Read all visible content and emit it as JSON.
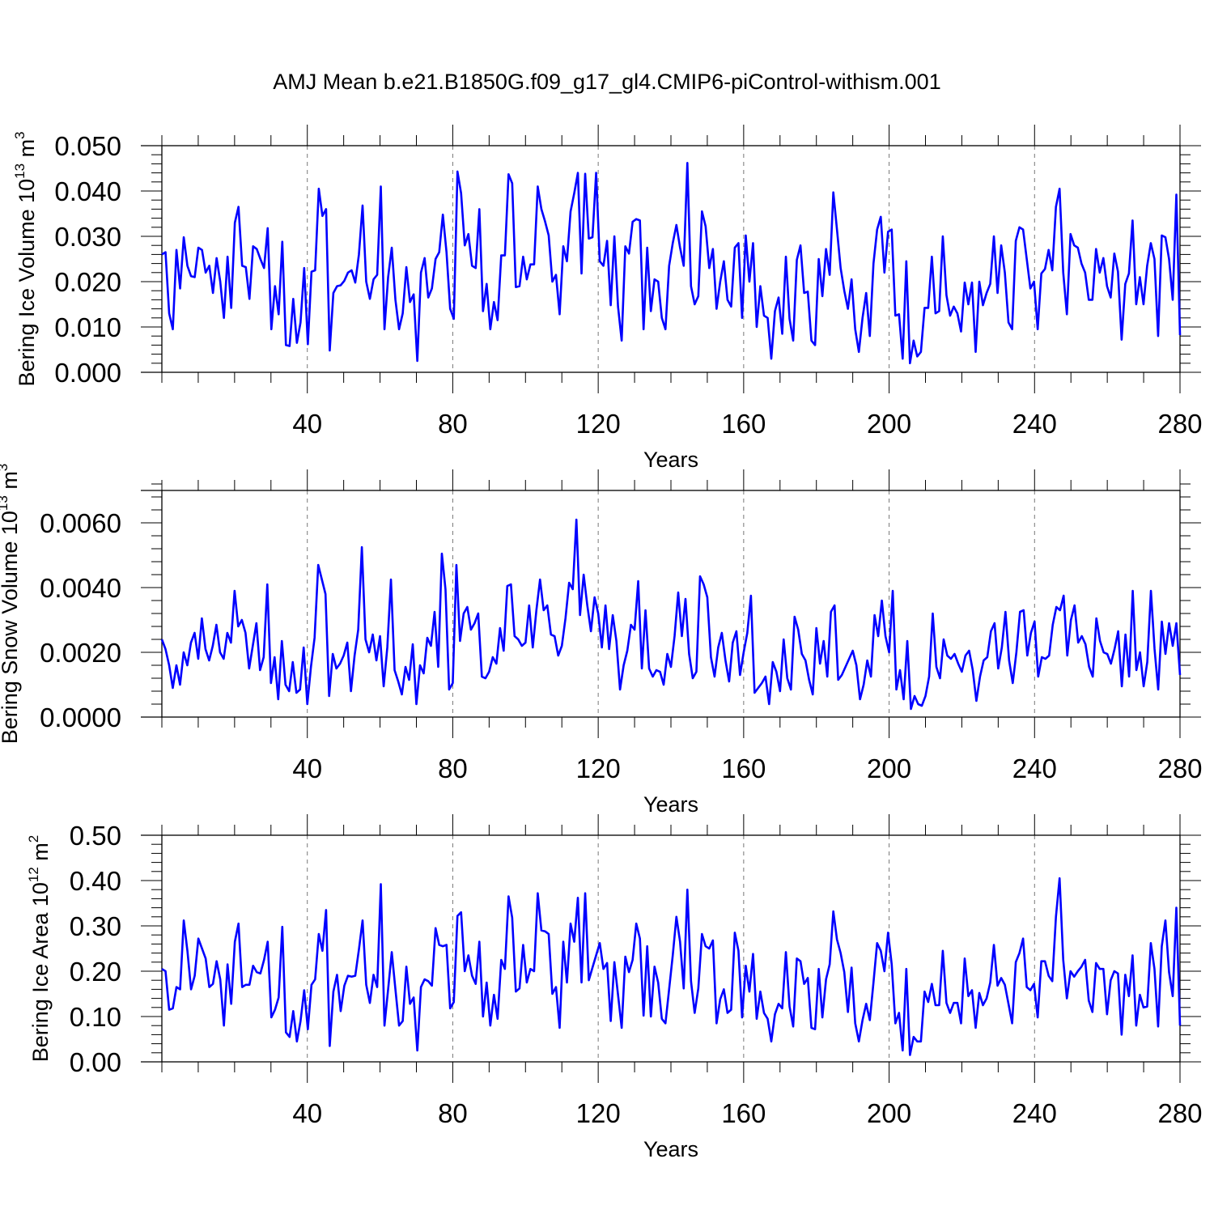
{
  "page_title": "AMJ Mean b.e21.B1850G.f09_g17_gl4.CMIP6-piControl-withism.001",
  "colors": {
    "series": "#0000ff",
    "axis": "#000000",
    "grid": "#777777",
    "background": "#ffffff"
  },
  "chart_data": [
    {
      "type": "line",
      "title": "AMJ Mean b.e21.B1850G.f09_g17_gl4.CMIP6-piControl-withism.001",
      "ylabel_main": "Bering Ice Volume 10",
      "ylabel_sup": "13",
      "ylabel_tail": " m",
      "ylabel_sup2": "3",
      "xlabel": "Years",
      "xlim": [
        0,
        280
      ],
      "ylim": [
        0,
        0.05
      ],
      "xticks": [
        40,
        80,
        120,
        160,
        200,
        240,
        280
      ],
      "xtick_labels": [
        "40",
        "80",
        "120",
        "160",
        "200",
        "240",
        "280"
      ],
      "yticks": [
        0,
        0.01,
        0.02,
        0.03,
        0.04,
        0.05
      ],
      "ytick_labels": [
        "0.000",
        "0.010",
        "0.020",
        "0.030",
        "0.040",
        "0.050"
      ],
      "grid": "vertical dashed at major x ticks",
      "series": [
        {
          "name": "Bering Ice Volume",
          "x_start": 0,
          "values": [
            0.026,
            0.0265,
            0.013,
            0.0095,
            0.027,
            0.0185,
            0.0298,
            0.0235,
            0.0212,
            0.021,
            0.0275,
            0.027,
            0.022,
            0.0235,
            0.0175,
            0.0252,
            0.02,
            0.012,
            0.0255,
            0.0142,
            0.033,
            0.0365,
            0.0235,
            0.0232,
            0.0162,
            0.0278,
            0.0272,
            0.025,
            0.023,
            0.0318,
            0.0095,
            0.019,
            0.0128,
            0.0288,
            0.006,
            0.0058,
            0.0162,
            0.0065,
            0.011,
            0.023,
            0.0062,
            0.0222,
            0.0225,
            0.0405,
            0.0345,
            0.036,
            0.0048,
            0.0175,
            0.019,
            0.0192,
            0.0202,
            0.022,
            0.0225,
            0.0198,
            0.026,
            0.0368,
            0.02,
            0.0162,
            0.0205,
            0.0215,
            0.041,
            0.0095,
            0.021,
            0.0275,
            0.016,
            0.0095,
            0.013,
            0.0232,
            0.0155,
            0.0172,
            0.0025,
            0.022,
            0.0252,
            0.0165,
            0.0185,
            0.025,
            0.0265,
            0.0348,
            0.0265,
            0.014,
            0.0118,
            0.0443,
            0.0395,
            0.028,
            0.0305,
            0.0235,
            0.023,
            0.036,
            0.0135,
            0.0195,
            0.0095,
            0.0155,
            0.0115,
            0.0258,
            0.0258,
            0.0437,
            0.0417,
            0.0188,
            0.019,
            0.0255,
            0.0205,
            0.0238,
            0.0238,
            0.041,
            0.036,
            0.0333,
            0.0302,
            0.02,
            0.0215,
            0.0128,
            0.0278,
            0.0245,
            0.0355,
            0.0395,
            0.044,
            0.0218,
            0.0438,
            0.0295,
            0.0298,
            0.044,
            0.0245,
            0.0235,
            0.029,
            0.0148,
            0.03,
            0.0145,
            0.007,
            0.0278,
            0.0262,
            0.0332,
            0.0338,
            0.0335,
            0.0095,
            0.0275,
            0.0135,
            0.0205,
            0.02,
            0.012,
            0.0095,
            0.0235,
            0.0285,
            0.0325,
            0.0275,
            0.0235,
            0.0462,
            0.019,
            0.015,
            0.0168,
            0.0355,
            0.0322,
            0.023,
            0.0272,
            0.014,
            0.02,
            0.0245,
            0.016,
            0.0145,
            0.0275,
            0.0285,
            0.012,
            0.0302,
            0.02,
            0.0285,
            0.01,
            0.019,
            0.0125,
            0.012,
            0.003,
            0.0135,
            0.0165,
            0.0085,
            0.0255,
            0.0118,
            0.007,
            0.0248,
            0.028,
            0.0175,
            0.0178,
            0.007,
            0.006,
            0.025,
            0.0168,
            0.0272,
            0.0215,
            0.0397,
            0.0315,
            0.023,
            0.018,
            0.014,
            0.0205,
            0.0095,
            0.0045,
            0.012,
            0.0175,
            0.008,
            0.024,
            0.0315,
            0.0343,
            0.022,
            0.031,
            0.0315,
            0.0125,
            0.0128,
            0.003,
            0.0245,
            0.002,
            0.007,
            0.0035,
            0.0045,
            0.0142,
            0.0142,
            0.0255,
            0.013,
            0.0135,
            0.03,
            0.017,
            0.0125,
            0.0145,
            0.013,
            0.009,
            0.0198,
            0.015,
            0.0198,
            0.0045,
            0.02,
            0.0148,
            0.0175,
            0.0195,
            0.03,
            0.0175,
            0.028,
            0.022,
            0.011,
            0.0095,
            0.029,
            0.032,
            0.0315,
            0.025,
            0.0185,
            0.02,
            0.0095,
            0.0218,
            0.0228,
            0.027,
            0.0225,
            0.0365,
            0.0405,
            0.022,
            0.0128,
            0.0305,
            0.028,
            0.0275,
            0.024,
            0.022,
            0.016,
            0.016,
            0.0272,
            0.022,
            0.0252,
            0.019,
            0.0165,
            0.0262,
            0.0222,
            0.0072,
            0.0195,
            0.0218,
            0.0335,
            0.015,
            0.021,
            0.015,
            0.0235,
            0.0285,
            0.025,
            0.008,
            0.0302,
            0.0298,
            0.025,
            0.016,
            0.0392,
            0.0082
          ]
        }
      ]
    },
    {
      "type": "line",
      "ylabel_main": "Bering Snow Volume 10",
      "ylabel_sup": "13",
      "ylabel_tail": " m",
      "ylabel_sup2": "3",
      "xlabel": "Years",
      "xlim": [
        0,
        280
      ],
      "ylim": [
        0,
        0.007
      ],
      "xticks": [
        40,
        80,
        120,
        160,
        200,
        240,
        280
      ],
      "xtick_labels": [
        "40",
        "80",
        "120",
        "160",
        "200",
        "240",
        "280"
      ],
      "yticks": [
        0,
        0.002,
        0.004,
        0.006
      ],
      "ytick_labels": [
        "0.0000",
        "0.0020",
        "0.0040",
        "0.0060"
      ],
      "grid": "vertical dashed at major x ticks",
      "series": [
        {
          "name": "Bering Snow Volume",
          "x_start": 0,
          "values": [
            0.0024,
            0.0021,
            0.0016,
            0.0009,
            0.0016,
            0.001,
            0.002,
            0.0016,
            0.0023,
            0.0026,
            0.0018,
            0.00305,
            0.0021,
            0.00175,
            0.0022,
            0.00285,
            0.002,
            0.0018,
            0.0026,
            0.0023,
            0.0039,
            0.0028,
            0.003,
            0.0026,
            0.0015,
            0.0022,
            0.0029,
            0.00145,
            0.00185,
            0.0041,
            0.00105,
            0.00185,
            0.00055,
            0.00235,
            0.001,
            0.0008,
            0.0017,
            0.00075,
            0.00085,
            0.00215,
            0.0004,
            0.00155,
            0.00245,
            0.0047,
            0.00425,
            0.0038,
            0.00065,
            0.00195,
            0.0015,
            0.00165,
            0.0019,
            0.0023,
            0.0008,
            0.0019,
            0.0027,
            0.00525,
            0.0024,
            0.002,
            0.00255,
            0.00175,
            0.0025,
            0.00095,
            0.00215,
            0.00425,
            0.00145,
            0.0011,
            0.0007,
            0.00155,
            0.00115,
            0.00225,
            0.0004,
            0.0016,
            0.00135,
            0.00245,
            0.0022,
            0.00325,
            0.00155,
            0.00505,
            0.00395,
            0.00085,
            0.00105,
            0.0047,
            0.00235,
            0.0032,
            0.0034,
            0.0027,
            0.0029,
            0.0032,
            0.00125,
            0.0012,
            0.0014,
            0.00185,
            0.00165,
            0.00275,
            0.00205,
            0.00405,
            0.0041,
            0.0025,
            0.0024,
            0.0022,
            0.0023,
            0.00345,
            0.00215,
            0.0033,
            0.00425,
            0.0033,
            0.00345,
            0.00255,
            0.0025,
            0.0019,
            0.0022,
            0.00305,
            0.00415,
            0.00395,
            0.0061,
            0.00315,
            0.0044,
            0.00345,
            0.00265,
            0.0037,
            0.0032,
            0.00215,
            0.00345,
            0.0021,
            0.00315,
            0.00235,
            0.00085,
            0.0016,
            0.00205,
            0.00285,
            0.0027,
            0.0042,
            0.0015,
            0.0033,
            0.0015,
            0.00125,
            0.00145,
            0.0014,
            0.001,
            0.00195,
            0.00155,
            0.0025,
            0.00385,
            0.0025,
            0.00365,
            0.00195,
            0.0012,
            0.0014,
            0.00435,
            0.0041,
            0.0037,
            0.00185,
            0.00125,
            0.00215,
            0.0026,
            0.00175,
            0.0011,
            0.0023,
            0.00265,
            0.0013,
            0.002,
            0.0026,
            0.00375,
            0.00075,
            0.0009,
            0.00105,
            0.00125,
            0.0004,
            0.0017,
            0.0014,
            0.0008,
            0.0024,
            0.0012,
            0.00085,
            0.0031,
            0.0027,
            0.00195,
            0.00175,
            0.00115,
            0.0007,
            0.00275,
            0.00165,
            0.00235,
            0.00125,
            0.00325,
            0.00345,
            0.00115,
            0.0013,
            0.00155,
            0.0018,
            0.00205,
            0.0016,
            0.00055,
            0.001,
            0.00175,
            0.00125,
            0.00315,
            0.0025,
            0.0036,
            0.0025,
            0.002,
            0.0039,
            0.00085,
            0.00145,
            0.00055,
            0.00235,
            0.00025,
            0.00065,
            0.0004,
            0.00035,
            0.00065,
            0.00125,
            0.0032,
            0.00155,
            0.0012,
            0.0024,
            0.0019,
            0.0018,
            0.00195,
            0.00165,
            0.0014,
            0.0019,
            0.00205,
            0.00145,
            0.0005,
            0.00125,
            0.00175,
            0.00185,
            0.00265,
            0.0029,
            0.0015,
            0.00215,
            0.00325,
            0.00175,
            0.00105,
            0.002,
            0.00325,
            0.0033,
            0.0019,
            0.0026,
            0.00295,
            0.00125,
            0.00185,
            0.0018,
            0.0019,
            0.00285,
            0.0034,
            0.0033,
            0.00375,
            0.0019,
            0.003,
            0.00345,
            0.0023,
            0.0025,
            0.00225,
            0.00155,
            0.00125,
            0.00305,
            0.00235,
            0.002,
            0.00195,
            0.00165,
            0.0021,
            0.00265,
            0.00095,
            0.00255,
            0.00125,
            0.0039,
            0.00145,
            0.002,
            0.00095,
            0.0017,
            0.0039,
            0.0021,
            0.00085,
            0.00295,
            0.00195,
            0.0029,
            0.0022,
            0.0029,
            0.0013
          ]
        }
      ]
    },
    {
      "type": "line",
      "ylabel_main": "Bering Ice Area 10",
      "ylabel_sup": "12",
      "ylabel_tail": " m",
      "ylabel_sup2": "2",
      "xlabel": "Years",
      "xlim": [
        0,
        280
      ],
      "ylim": [
        0,
        0.5
      ],
      "xticks": [
        40,
        80,
        120,
        160,
        200,
        240,
        280
      ],
      "xtick_labels": [
        "40",
        "80",
        "120",
        "160",
        "200",
        "240",
        "280"
      ],
      "yticks": [
        0,
        0.1,
        0.2,
        0.3,
        0.4,
        0.5
      ],
      "ytick_labels": [
        "0.00",
        "0.10",
        "0.20",
        "0.30",
        "0.40",
        "0.50"
      ],
      "grid": "vertical dashed at major x ticks",
      "series": [
        {
          "name": "Bering Ice Area",
          "x_start": 0,
          "values": [
            0.205,
            0.2,
            0.115,
            0.118,
            0.165,
            0.16,
            0.312,
            0.245,
            0.16,
            0.19,
            0.272,
            0.25,
            0.228,
            0.165,
            0.172,
            0.222,
            0.182,
            0.08,
            0.215,
            0.128,
            0.265,
            0.305,
            0.165,
            0.17,
            0.17,
            0.212,
            0.198,
            0.195,
            0.225,
            0.265,
            0.098,
            0.115,
            0.142,
            0.298,
            0.065,
            0.055,
            0.112,
            0.045,
            0.09,
            0.158,
            0.072,
            0.17,
            0.182,
            0.282,
            0.245,
            0.335,
            0.035,
            0.155,
            0.192,
            0.112,
            0.168,
            0.19,
            0.188,
            0.19,
            0.248,
            0.312,
            0.17,
            0.13,
            0.192,
            0.165,
            0.392,
            0.08,
            0.16,
            0.242,
            0.16,
            0.08,
            0.09,
            0.21,
            0.128,
            0.142,
            0.025,
            0.165,
            0.182,
            0.178,
            0.168,
            0.295,
            0.258,
            0.255,
            0.258,
            0.118,
            0.132,
            0.322,
            0.33,
            0.2,
            0.235,
            0.19,
            0.172,
            0.265,
            0.1,
            0.175,
            0.08,
            0.148,
            0.095,
            0.225,
            0.205,
            0.365,
            0.318,
            0.155,
            0.162,
            0.258,
            0.175,
            0.205,
            0.2,
            0.372,
            0.29,
            0.288,
            0.282,
            0.15,
            0.165,
            0.075,
            0.265,
            0.175,
            0.305,
            0.265,
            0.362,
            0.175,
            0.372,
            0.18,
            0.208,
            0.235,
            0.262,
            0.205,
            0.218,
            0.09,
            0.22,
            0.148,
            0.075,
            0.232,
            0.198,
            0.225,
            0.305,
            0.272,
            0.102,
            0.255,
            0.1,
            0.21,
            0.175,
            0.095,
            0.085,
            0.16,
            0.235,
            0.32,
            0.265,
            0.162,
            0.38,
            0.178,
            0.108,
            0.162,
            0.282,
            0.255,
            0.25,
            0.268,
            0.085,
            0.138,
            0.16,
            0.108,
            0.115,
            0.285,
            0.245,
            0.098,
            0.212,
            0.155,
            0.238,
            0.095,
            0.155,
            0.108,
            0.095,
            0.045,
            0.105,
            0.128,
            0.118,
            0.242,
            0.122,
            0.078,
            0.228,
            0.222,
            0.172,
            0.185,
            0.075,
            0.072,
            0.205,
            0.098,
            0.182,
            0.215,
            0.332,
            0.27,
            0.24,
            0.198,
            0.11,
            0.208,
            0.085,
            0.045,
            0.092,
            0.128,
            0.092,
            0.175,
            0.262,
            0.245,
            0.2,
            0.285,
            0.215,
            0.085,
            0.108,
            0.025,
            0.205,
            0.015,
            0.055,
            0.045,
            0.045,
            0.155,
            0.132,
            0.172,
            0.125,
            0.125,
            0.245,
            0.13,
            0.108,
            0.13,
            0.13,
            0.085,
            0.228,
            0.145,
            0.158,
            0.075,
            0.152,
            0.125,
            0.14,
            0.175,
            0.258,
            0.168,
            0.185,
            0.17,
            0.128,
            0.085,
            0.22,
            0.24,
            0.272,
            0.165,
            0.158,
            0.172,
            0.098,
            0.222,
            0.222,
            0.19,
            0.178,
            0.32,
            0.405,
            0.225,
            0.14,
            0.2,
            0.188,
            0.2,
            0.21,
            0.225,
            0.135,
            0.11,
            0.218,
            0.205,
            0.205,
            0.105,
            0.18,
            0.2,
            0.195,
            0.06,
            0.192,
            0.145,
            0.235,
            0.08,
            0.148,
            0.12,
            0.122,
            0.262,
            0.205,
            0.078,
            0.255,
            0.312,
            0.198,
            0.145,
            0.34,
            0.08
          ]
        }
      ]
    }
  ]
}
